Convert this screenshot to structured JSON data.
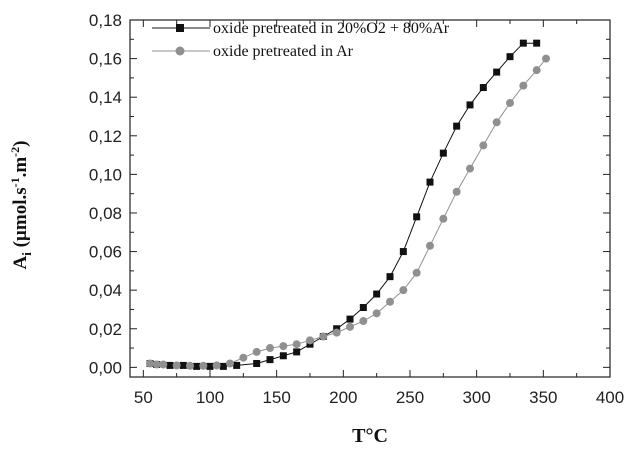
{
  "chart_data": {
    "type": "scatter",
    "xlabel": "T°C",
    "ylabel_main": "A",
    "ylabel_sub": "i",
    "ylabel_rest": " (µmol.s",
    "ylabel_sup1": "-1",
    "ylabel_mid": ".m",
    "ylabel_sup2": "-2",
    "ylabel_end": ")",
    "xlim": [
      40,
      400
    ],
    "ylim": [
      -0.005,
      0.18
    ],
    "x_ticks": [
      50,
      100,
      150,
      200,
      250,
      300,
      350,
      400
    ],
    "x_tick_labels": [
      "50",
      "100",
      "150",
      "200",
      "250",
      "300",
      "350",
      "400"
    ],
    "y_ticks": [
      0.0,
      0.02,
      0.04,
      0.06,
      0.08,
      0.1,
      0.12,
      0.14,
      0.16,
      0.18
    ],
    "y_tick_labels": [
      "0,00",
      "0,02",
      "0,04",
      "0,06",
      "0,08",
      "0,10",
      "0,12",
      "0,14",
      "0,16",
      "0,18"
    ],
    "legend_position": "top-left",
    "series": [
      {
        "name": "oxide pretreated in 20%O2 + 80%Ar",
        "marker": "square",
        "color": "#111111",
        "line": true,
        "x": [
          55,
          60,
          70,
          80,
          90,
          100,
          110,
          120,
          135,
          145,
          155,
          165,
          175,
          185,
          195,
          205,
          215,
          225,
          235,
          245,
          255,
          265,
          275,
          285,
          295,
          305,
          315,
          325,
          335,
          345
        ],
        "y": [
          0.002,
          0.0015,
          0.001,
          0.001,
          0.0005,
          0.0005,
          0.0005,
          0.001,
          0.002,
          0.004,
          0.006,
          0.008,
          0.012,
          0.016,
          0.02,
          0.025,
          0.031,
          0.038,
          0.047,
          0.06,
          0.078,
          0.096,
          0.111,
          0.125,
          0.136,
          0.145,
          0.153,
          0.161,
          0.168,
          0.168
        ]
      },
      {
        "name": "oxide pretreated in Ar",
        "marker": "circle",
        "color": "#909090",
        "line": true,
        "x": [
          55,
          60,
          65,
          75,
          85,
          95,
          105,
          115,
          125,
          135,
          145,
          155,
          165,
          175,
          185,
          195,
          205,
          215,
          225,
          235,
          245,
          255,
          265,
          275,
          285,
          295,
          305,
          315,
          325,
          335,
          345,
          352
        ],
        "y": [
          0.002,
          0.0015,
          0.0015,
          0.001,
          0.0008,
          0.0008,
          0.001,
          0.002,
          0.005,
          0.008,
          0.01,
          0.011,
          0.012,
          0.014,
          0.016,
          0.018,
          0.021,
          0.024,
          0.028,
          0.034,
          0.04,
          0.049,
          0.063,
          0.077,
          0.091,
          0.103,
          0.115,
          0.127,
          0.137,
          0.146,
          0.154,
          0.16
        ]
      }
    ]
  }
}
